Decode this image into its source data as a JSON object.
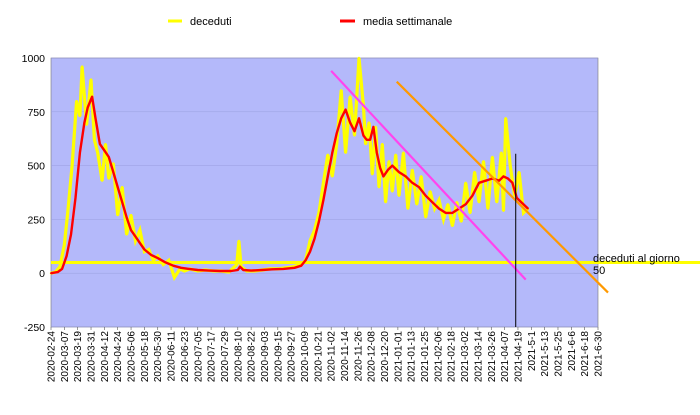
{
  "chart_data": {
    "type": "line",
    "legend": {
      "placement": "top",
      "items": [
        {
          "label": "deceduti",
          "color": "#ffff00"
        },
        {
          "label": "media settimanale",
          "color": "#ff0000"
        }
      ]
    },
    "ylim": [
      -250,
      1000
    ],
    "yticks": [
      "1000",
      "750",
      "500",
      "250",
      "0",
      "-250"
    ],
    "yticks_values": [
      1000,
      750,
      500,
      250,
      0,
      -250
    ],
    "x_start": "2020-02-24",
    "x_end": "2021-06-30",
    "x_tick_labels": [
      "2020-02-24",
      "2020-03-07",
      "2020-03-19",
      "2020-03-31",
      "2020-04-12",
      "2020-04-24",
      "2020-05-06",
      "2020-05-18",
      "2020-05-30",
      "2020-06-11",
      "2020-06-23",
      "2020-07-05",
      "2020-07-17",
      "2020-07-29",
      "2020-08-10",
      "2020-08-22",
      "2020-09-03",
      "2020-09-15",
      "2020-09-27",
      "2020-10-09",
      "2020-10-21",
      "2020-11-02",
      "2020-11-14",
      "2020-11-26",
      "2020-12-08",
      "2020-12-20",
      "2021-01-01",
      "2021-01-13",
      "2021-01-25",
      "2021-02-06",
      "2021-02-18",
      "2021-03-02",
      "2021-03-14",
      "2021-03-26",
      "2021-04-07",
      "2021-04-19",
      "2021-5-1",
      "2021-5-13",
      "2021-5-25",
      "2021-6-6",
      "2021-6-18",
      "2021-6-30"
    ],
    "colors": {
      "plot_bg": "#b4b9fa",
      "deceduti": "#ffff00",
      "media": "#ff0000",
      "trend1": "#ff44ee",
      "trend2": "#ff9900",
      "reference": "#ffff00",
      "marker": "#000000"
    },
    "series": [
      {
        "name": "deceduti",
        "x": [
          "2020-02-24",
          "2020-02-28",
          "2020-03-03",
          "2020-03-07",
          "2020-03-10",
          "2020-03-14",
          "2020-03-18",
          "2020-03-21",
          "2020-03-23",
          "2020-03-27",
          "2020-03-31",
          "2020-04-03",
          "2020-04-06",
          "2020-04-10",
          "2020-04-13",
          "2020-04-16",
          "2020-04-20",
          "2020-04-24",
          "2020-04-28",
          "2020-05-02",
          "2020-05-06",
          "2020-05-10",
          "2020-05-14",
          "2020-05-18",
          "2020-05-22",
          "2020-05-26",
          "2020-05-30",
          "2020-06-04",
          "2020-06-09",
          "2020-06-14",
          "2020-06-19",
          "2020-06-23",
          "2020-06-28",
          "2020-07-05",
          "2020-07-12",
          "2020-07-19",
          "2020-07-26",
          "2020-08-02",
          "2020-08-09",
          "2020-08-11",
          "2020-08-13",
          "2020-08-18",
          "2020-08-25",
          "2020-09-01",
          "2020-09-08",
          "2020-09-15",
          "2020-09-22",
          "2020-09-29",
          "2020-10-06",
          "2020-10-10",
          "2020-10-14",
          "2020-10-18",
          "2020-10-22",
          "2020-10-26",
          "2020-10-30",
          "2020-11-03",
          "2020-11-07",
          "2020-11-11",
          "2020-11-15",
          "2020-11-19",
          "2020-11-23",
          "2020-11-27",
          "2020-12-01",
          "2020-12-03",
          "2020-12-06",
          "2020-12-09",
          "2020-12-12",
          "2020-12-15",
          "2020-12-18",
          "2020-12-21",
          "2020-12-24",
          "2020-12-27",
          "2020-12-30",
          "2021-01-02",
          "2021-01-06",
          "2021-01-10",
          "2021-01-14",
          "2021-01-18",
          "2021-01-22",
          "2021-01-26",
          "2021-01-30",
          "2021-02-03",
          "2021-02-07",
          "2021-02-11",
          "2021-02-15",
          "2021-02-19",
          "2021-02-23",
          "2021-02-27",
          "2021-03-03",
          "2021-03-07",
          "2021-03-11",
          "2021-03-15",
          "2021-03-19",
          "2021-03-23",
          "2021-03-27",
          "2021-03-31",
          "2021-04-04",
          "2021-04-06",
          "2021-04-08",
          "2021-04-12",
          "2021-04-16",
          "2021-04-20",
          "2021-04-24",
          "2021-04-28"
        ],
        "values": [
          0,
          5,
          30,
          130,
          280,
          500,
          800,
          730,
          960,
          690,
          900,
          620,
          560,
          430,
          600,
          440,
          510,
          270,
          400,
          180,
          270,
          150,
          200,
          100,
          110,
          60,
          80,
          40,
          60,
          -20,
          20,
          10,
          20,
          10,
          15,
          10,
          10,
          5,
          40,
          150,
          30,
          10,
          10,
          15,
          20,
          20,
          25,
          30,
          40,
          60,
          150,
          200,
          280,
          420,
          550,
          450,
          600,
          850,
          560,
          820,
          640,
          1000,
          780,
          600,
          700,
          460,
          680,
          400,
          600,
          330,
          520,
          380,
          550,
          360,
          560,
          300,
          480,
          320,
          450,
          260,
          380,
          300,
          340,
          250,
          320,
          220,
          330,
          240,
          420,
          280,
          470,
          330,
          520,
          300,
          540,
          330,
          560,
          290,
          720,
          500,
          360,
          470,
          280,
          300
        ]
      },
      {
        "name": "media settimanale",
        "x": [
          "2020-02-24",
          "2020-03-01",
          "2020-03-05",
          "2020-03-09",
          "2020-03-13",
          "2020-03-17",
          "2020-03-21",
          "2020-03-25",
          "2020-03-28",
          "2020-04-01",
          "2020-04-04",
          "2020-04-08",
          "2020-04-12",
          "2020-04-16",
          "2020-04-20",
          "2020-04-24",
          "2020-04-28",
          "2020-05-02",
          "2020-05-06",
          "2020-05-10",
          "2020-05-14",
          "2020-05-18",
          "2020-05-24",
          "2020-05-30",
          "2020-06-06",
          "2020-06-13",
          "2020-06-20",
          "2020-06-27",
          "2020-07-05",
          "2020-07-15",
          "2020-07-25",
          "2020-08-04",
          "2020-08-10",
          "2020-08-12",
          "2020-08-15",
          "2020-08-22",
          "2020-09-01",
          "2020-09-10",
          "2020-09-20",
          "2020-09-30",
          "2020-10-06",
          "2020-10-10",
          "2020-10-14",
          "2020-10-18",
          "2020-10-22",
          "2020-10-26",
          "2020-10-30",
          "2020-11-03",
          "2020-11-07",
          "2020-11-11",
          "2020-11-15",
          "2020-11-19",
          "2020-11-23",
          "2020-11-27",
          "2020-12-01",
          "2020-12-04",
          "2020-12-07",
          "2020-12-10",
          "2020-12-13",
          "2020-12-16",
          "2020-12-19",
          "2020-12-23",
          "2020-12-27",
          "2021-01-02",
          "2021-01-08",
          "2021-01-14",
          "2021-01-20",
          "2021-01-26",
          "2021-02-01",
          "2021-02-07",
          "2021-02-13",
          "2021-02-19",
          "2021-02-25",
          "2021-03-03",
          "2021-03-09",
          "2021-03-15",
          "2021-03-21",
          "2021-03-27",
          "2021-04-02",
          "2021-04-06",
          "2021-04-10",
          "2021-04-14",
          "2021-04-18",
          "2021-04-22",
          "2021-04-28"
        ],
        "values": [
          0,
          5,
          20,
          80,
          180,
          350,
          560,
          700,
          770,
          820,
          720,
          600,
          570,
          540,
          470,
          400,
          330,
          260,
          200,
          170,
          140,
          110,
          85,
          70,
          50,
          35,
          25,
          20,
          15,
          12,
          10,
          10,
          15,
          30,
          15,
          12,
          15,
          18,
          20,
          25,
          35,
          60,
          100,
          160,
          240,
          340,
          450,
          560,
          650,
          720,
          760,
          700,
          660,
          720,
          640,
          620,
          620,
          680,
          560,
          490,
          450,
          480,
          500,
          470,
          450,
          420,
          400,
          360,
          330,
          300,
          280,
          280,
          300,
          320,
          360,
          420,
          430,
          440,
          430,
          450,
          440,
          420,
          350,
          330,
          300
        ]
      }
    ],
    "trend_lines": [
      {
        "color": "#ff44ee",
        "from": {
          "x": "2020-11-02",
          "y": 940
        },
        "to": {
          "x": "2021-04-26",
          "y": -30
        }
      },
      {
        "color": "#ff9900",
        "from": {
          "x": "2020-12-31",
          "y": 890
        },
        "to": {
          "x": "2021-07-09",
          "y": -90
        }
      }
    ],
    "reference_line": {
      "y": 50,
      "label": "deceduti al giorno 50"
    },
    "vertical_marker": {
      "x": "2021-04-17",
      "y_top": 555,
      "y_bottom": -250
    }
  }
}
